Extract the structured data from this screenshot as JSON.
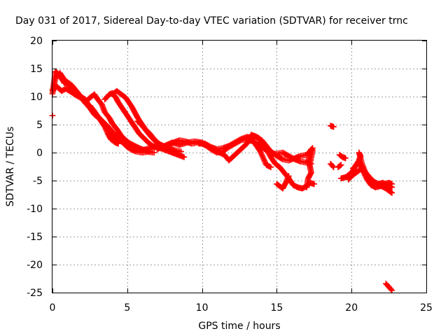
{
  "chart_data": {
    "type": "scatter",
    "title": "Day 031 of 2017, Sidereal Day-to-day VTEC variation (SDTVAR) for receiver trnc",
    "xlabel": "GPS time / hours",
    "ylabel": "SDTVAR / TECUs",
    "xlim": [
      0,
      25
    ],
    "ylim": [
      -25,
      20
    ],
    "xticks": [
      0,
      5,
      10,
      15,
      20,
      25
    ],
    "yticks": [
      -25,
      -20,
      -15,
      -10,
      -5,
      0,
      5,
      10,
      15,
      20
    ],
    "grid": true,
    "marker": "plus",
    "color": "#ff0000",
    "series": [
      {
        "name": "SDTVAR",
        "tracks": [
          [
            [
              0.0,
              10.5
            ],
            [
              0.1,
              12.5
            ],
            [
              0.2,
              14.5
            ],
            [
              0.4,
              14.0
            ],
            [
              0.6,
              13.2
            ],
            [
              0.8,
              12.4
            ],
            [
              1.0,
              12.6
            ],
            [
              1.3,
              12.0
            ],
            [
              1.6,
              11.0
            ],
            [
              1.9,
              10.0
            ],
            [
              2.2,
              9.5
            ],
            [
              2.5,
              8.0
            ],
            [
              2.8,
              6.8
            ],
            [
              3.1,
              6.2
            ],
            [
              3.4,
              5.0
            ],
            [
              3.7,
              4.0
            ],
            [
              4.0,
              3.0
            ],
            [
              4.3,
              2.5
            ],
            [
              4.6,
              2.0
            ],
            [
              5.0,
              1.4
            ],
            [
              5.3,
              1.0
            ],
            [
              5.6,
              0.6
            ],
            [
              6.0,
              0.4
            ],
            [
              6.5,
              0.8
            ],
            [
              7.0,
              1.4
            ],
            [
              7.5,
              1.0
            ],
            [
              8.0,
              0.2
            ],
            [
              8.3,
              0.0
            ]
          ],
          [
            [
              0.0,
              11.2
            ],
            [
              0.3,
              11.8
            ],
            [
              0.6,
              11.0
            ],
            [
              0.9,
              11.4
            ],
            [
              1.2,
              10.9
            ],
            [
              1.6,
              10.2
            ],
            [
              2.0,
              9.6
            ],
            [
              2.3,
              8.6
            ],
            [
              2.6,
              7.6
            ],
            [
              2.9,
              6.6
            ],
            [
              3.2,
              6.0
            ],
            [
              3.5,
              5.2
            ],
            [
              3.8,
              4.4
            ],
            [
              4.1,
              3.4
            ],
            [
              4.4,
              2.6
            ],
            [
              4.7,
              1.8
            ],
            [
              5.0,
              1.0
            ],
            [
              5.3,
              0.5
            ],
            [
              5.6,
              0.2
            ],
            [
              6.0,
              0.0
            ],
            [
              6.5,
              0.2
            ]
          ],
          [
            [
              0.05,
              11.0
            ],
            [
              0.2,
              13.5
            ],
            [
              0.5,
              14.2
            ],
            [
              0.8,
              13.0
            ],
            [
              1.1,
              12.0
            ],
            [
              1.5,
              11.2
            ],
            [
              1.9,
              10.0
            ],
            [
              2.2,
              8.8
            ],
            [
              2.5,
              8.4
            ],
            [
              2.8,
              7.4
            ],
            [
              3.0,
              6.6
            ],
            [
              3.3,
              5.6
            ],
            [
              3.5,
              4.6
            ],
            [
              3.7,
              3.4
            ],
            [
              3.9,
              2.4
            ],
            [
              4.2,
              1.8
            ],
            [
              4.4,
              1.6
            ]
          ],
          [
            [
              2.2,
              9.0
            ],
            [
              2.5,
              9.8
            ],
            [
              2.8,
              10.4
            ],
            [
              3.0,
              9.6
            ],
            [
              3.3,
              8.6
            ],
            [
              3.5,
              7.2
            ],
            [
              3.8,
              6.2
            ],
            [
              4.0,
              5.2
            ],
            [
              4.3,
              4.2
            ],
            [
              4.6,
              3.0
            ],
            [
              4.9,
              2.2
            ],
            [
              5.2,
              1.6
            ],
            [
              5.5,
              1.2
            ],
            [
              5.8,
              0.8
            ],
            [
              6.2,
              0.4
            ],
            [
              6.5,
              0.1
            ],
            [
              6.8,
              0.0
            ]
          ],
          [
            [
              3.5,
              9.5
            ],
            [
              3.8,
              10.4
            ],
            [
              4.0,
              10.6
            ],
            [
              4.2,
              10.0
            ],
            [
              4.4,
              9.0
            ],
            [
              4.6,
              8.2
            ],
            [
              4.9,
              7.0
            ],
            [
              5.2,
              5.8
            ],
            [
              5.5,
              4.6
            ],
            [
              5.8,
              3.4
            ],
            [
              6.1,
              2.6
            ],
            [
              6.4,
              1.8
            ],
            [
              6.8,
              1.0
            ],
            [
              7.2,
              0.8
            ],
            [
              7.6,
              0.4
            ],
            [
              8.0,
              0.0
            ],
            [
              8.4,
              -0.4
            ],
            [
              8.8,
              -0.8
            ]
          ],
          [
            [
              4.0,
              10.4
            ],
            [
              4.3,
              11.0
            ],
            [
              4.6,
              10.4
            ],
            [
              4.9,
              9.8
            ],
            [
              5.1,
              9.0
            ],
            [
              5.3,
              8.2
            ],
            [
              5.5,
              7.2
            ],
            [
              5.7,
              6.2
            ],
            [
              6.0,
              5.0
            ],
            [
              6.2,
              4.2
            ],
            [
              6.5,
              3.4
            ],
            [
              6.8,
              2.4
            ],
            [
              7.1,
              1.6
            ],
            [
              7.4,
              1.2
            ],
            [
              7.8,
              0.8
            ],
            [
              8.2,
              0.4
            ],
            [
              8.6,
              0.2
            ]
          ],
          [
            [
              5.7,
              5.6
            ],
            [
              6.0,
              4.8
            ],
            [
              6.3,
              3.8
            ],
            [
              6.6,
              2.8
            ],
            [
              6.9,
              2.0
            ],
            [
              7.2,
              1.4
            ],
            [
              7.5,
              1.0
            ],
            [
              7.8,
              1.4
            ],
            [
              8.1,
              1.8
            ],
            [
              8.5,
              2.2
            ],
            [
              8.9,
              2.0
            ],
            [
              9.3,
              1.6
            ],
            [
              9.7,
              1.8
            ],
            [
              10.0,
              1.6
            ],
            [
              10.3,
              1.2
            ],
            [
              10.6,
              0.6
            ],
            [
              11.0,
              0.0
            ],
            [
              11.4,
              0.2
            ],
            [
              11.8,
              1.0
            ],
            [
              12.2,
              1.6
            ],
            [
              12.6,
              2.2
            ],
            [
              13.0,
              2.4
            ],
            [
              13.4,
              2.0
            ],
            [
              13.8,
              1.4
            ],
            [
              14.1,
              0.8
            ],
            [
              14.4,
              0.2
            ],
            [
              14.7,
              -0.2
            ],
            [
              15.0,
              -0.2
            ],
            [
              15.4,
              0.0
            ],
            [
              15.8,
              -0.6
            ],
            [
              16.2,
              -1.2
            ],
            [
              16.6,
              -1.6
            ],
            [
              17.0,
              -1.8
            ],
            [
              17.3,
              -2.0
            ]
          ],
          [
            [
              7.0,
              0.6
            ],
            [
              7.5,
              1.2
            ],
            [
              8.0,
              1.8
            ],
            [
              8.5,
              1.4
            ],
            [
              9.0,
              1.8
            ],
            [
              9.5,
              2.0
            ],
            [
              10.0,
              1.8
            ],
            [
              10.5,
              1.0
            ],
            [
              11.0,
              0.2
            ],
            [
              11.5,
              -0.4
            ],
            [
              11.8,
              -1.4
            ],
            [
              12.2,
              -0.4
            ],
            [
              12.6,
              0.6
            ],
            [
              13.0,
              1.6
            ],
            [
              13.3,
              3.2
            ],
            [
              13.6,
              2.8
            ],
            [
              14.0,
              2.2
            ],
            [
              14.3,
              1.2
            ],
            [
              14.6,
              0.2
            ],
            [
              15.0,
              -0.6
            ],
            [
              15.4,
              -1.2
            ],
            [
              15.8,
              -1.4
            ],
            [
              16.2,
              -1.0
            ],
            [
              16.6,
              -0.6
            ],
            [
              17.0,
              -0.4
            ],
            [
              17.4,
              0.8
            ]
          ],
          [
            [
              9.8,
              1.6
            ],
            [
              10.2,
              1.6
            ],
            [
              10.6,
              1.0
            ],
            [
              11.0,
              0.6
            ],
            [
              11.4,
              0.8
            ],
            [
              11.8,
              1.2
            ],
            [
              12.2,
              1.8
            ],
            [
              12.6,
              2.4
            ],
            [
              13.0,
              2.8
            ],
            [
              13.3,
              2.4
            ],
            [
              13.6,
              1.4
            ],
            [
              13.9,
              0.2
            ],
            [
              14.1,
              -1.0
            ],
            [
              14.3,
              -2.2
            ],
            [
              14.6,
              -2.6
            ]
          ],
          [
            [
              13.5,
              3.0
            ],
            [
              13.8,
              2.6
            ],
            [
              14.0,
              1.8
            ],
            [
              14.3,
              0.6
            ],
            [
              14.6,
              -0.8
            ],
            [
              14.9,
              -2.0
            ],
            [
              15.2,
              -2.6
            ],
            [
              15.5,
              -3.6
            ],
            [
              15.8,
              -4.6
            ],
            [
              16.1,
              -5.8
            ],
            [
              16.4,
              -6.2
            ],
            [
              16.7,
              -6.4
            ],
            [
              17.0,
              -6.0
            ],
            [
              17.2,
              -5.4
            ],
            [
              17.5,
              -5.6
            ]
          ],
          [
            [
              15.0,
              -5.6
            ],
            [
              15.2,
              -6.0
            ],
            [
              15.4,
              -6.4
            ],
            [
              15.6,
              -5.4
            ],
            [
              15.8,
              -4.2
            ]
          ],
          [
            [
              17.1,
              -1.6
            ],
            [
              17.2,
              -0.4
            ],
            [
              17.3,
              0.6
            ],
            [
              17.4,
              0.4
            ],
            [
              17.2,
              -2.2
            ],
            [
              17.3,
              -3.6
            ],
            [
              17.1,
              -4.6
            ],
            [
              17.0,
              -6.2
            ]
          ],
          [
            [
              18.6,
              4.8
            ],
            [
              18.8,
              4.6
            ]
          ],
          [
            [
              18.6,
              -2.0
            ],
            [
              18.8,
              -2.6
            ]
          ],
          [
            [
              19.2,
              -0.4
            ],
            [
              19.4,
              -0.8
            ],
            [
              19.6,
              -1.0
            ]
          ],
          [
            [
              19.1,
              -2.6
            ],
            [
              19.3,
              -2.2
            ]
          ],
          [
            [
              19.3,
              -4.6
            ],
            [
              19.6,
              -4.4
            ],
            [
              19.9,
              -3.8
            ],
            [
              20.1,
              -3.2
            ],
            [
              20.3,
              -2.2
            ],
            [
              20.5,
              -1.4
            ],
            [
              20.6,
              -0.6
            ],
            [
              20.5,
              0.0
            ],
            [
              20.7,
              -2.0
            ],
            [
              20.9,
              -3.4
            ],
            [
              21.1,
              -4.2
            ],
            [
              21.3,
              -5.0
            ],
            [
              21.5,
              -5.4
            ],
            [
              21.8,
              -5.8
            ],
            [
              22.0,
              -6.0
            ],
            [
              22.3,
              -6.4
            ],
            [
              22.5,
              -6.8
            ],
            [
              22.7,
              -7.2
            ]
          ],
          [
            [
              19.8,
              -4.8
            ],
            [
              20.0,
              -4.2
            ],
            [
              20.3,
              -3.6
            ],
            [
              20.6,
              -3.0
            ],
            [
              20.9,
              -3.4
            ],
            [
              21.2,
              -4.4
            ],
            [
              21.5,
              -5.2
            ],
            [
              21.8,
              -5.6
            ],
            [
              22.1,
              -5.4
            ],
            [
              22.4,
              -5.8
            ],
            [
              22.7,
              -6.2
            ]
          ],
          [
            [
              20.1,
              -2.8
            ],
            [
              20.3,
              -2.4
            ],
            [
              20.5,
              -1.8
            ],
            [
              20.7,
              -2.8
            ],
            [
              21.0,
              -4.6
            ],
            [
              21.3,
              -5.8
            ],
            [
              21.6,
              -6.2
            ],
            [
              21.9,
              -6.0
            ],
            [
              22.2,
              -5.6
            ],
            [
              22.5,
              -5.4
            ],
            [
              22.7,
              -5.6
            ]
          ],
          [
            [
              22.3,
              -23.4
            ],
            [
              22.5,
              -24.0
            ],
            [
              22.7,
              -24.6
            ]
          ],
          [
            [
              0.0,
              6.6
            ]
          ]
        ]
      }
    ]
  }
}
